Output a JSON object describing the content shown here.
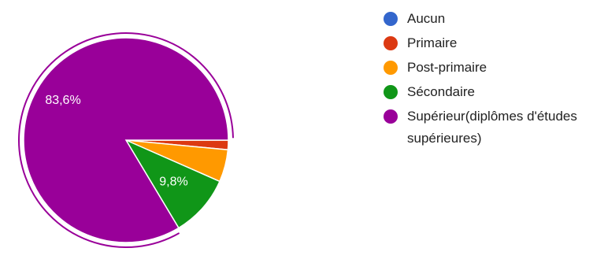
{
  "chart_data": {
    "type": "pie",
    "title": "",
    "categories": [
      "Aucun",
      "Primaire",
      "Post-primaire",
      "Sécondaire",
      "Supérieur(diplômes d'études supérieures)"
    ],
    "values": [
      0.0,
      1.5,
      5.1,
      9.8,
      83.6
    ],
    "data_labels": [
      "",
      "",
      "",
      "9,8%",
      "83,6%"
    ],
    "colors": [
      "#3366cc",
      "#dc3912",
      "#ff9900",
      "#109618",
      "#990099"
    ],
    "highlighted": "Supérieur(diplômes d'études supérieures)",
    "legend_position": "right",
    "start_angle": "3 o'clock",
    "direction": "clockwise"
  }
}
